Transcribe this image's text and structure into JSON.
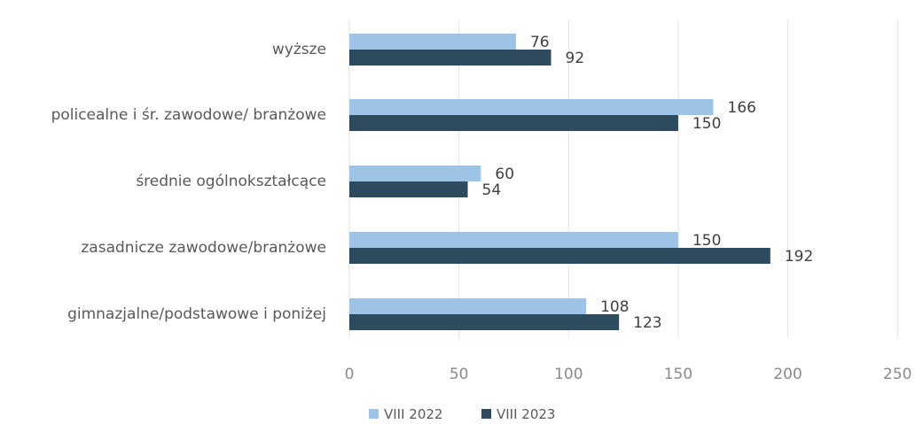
{
  "chart_data": {
    "type": "bar",
    "orientation": "horizontal",
    "categories": [
      "wyższe",
      "policealne i śr. zawodowe/ branżowe",
      "średnie ogólnokształcące",
      "zasadnicze zawodowe/branżowe",
      "gimnazjalne/podstawowe i poniżej"
    ],
    "series": [
      {
        "name": "VIII 2022",
        "values": [
          76,
          166,
          60,
          150,
          108
        ],
        "color": "#9dc3e6"
      },
      {
        "name": "VIII 2023",
        "values": [
          92,
          150,
          54,
          192,
          123
        ],
        "color": "#2e4a5e"
      }
    ],
    "xlim": [
      0,
      250
    ],
    "ticks": [
      0,
      50,
      100,
      150,
      200,
      250
    ],
    "grid": true,
    "legend": "bottom"
  }
}
